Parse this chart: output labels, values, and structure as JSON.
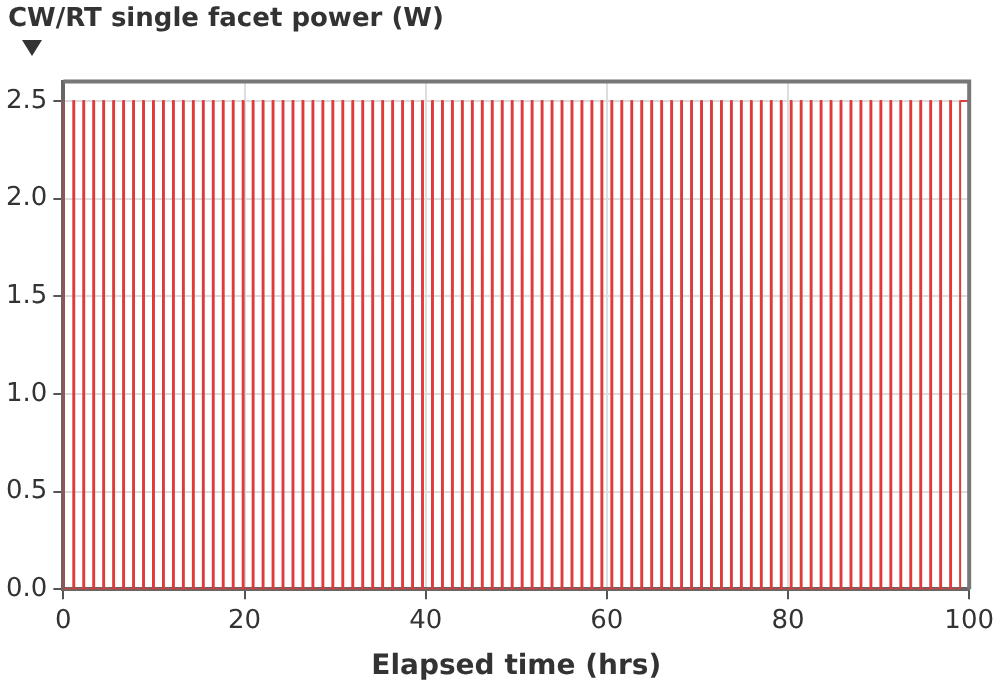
{
  "chart_data": {
    "type": "step",
    "title": "CW/RT single facet power (W)",
    "xlabel": "Elapsed time (hrs)",
    "x": [
      0,
      1.1,
      1.2,
      2.2,
      2.3,
      3.3,
      3.4,
      4.4,
      4.5,
      5.5,
      5.6,
      6.6,
      6.7,
      7.7,
      7.8,
      8.8,
      8.9,
      9.9,
      10,
      11,
      11.1,
      12.1,
      12.2,
      13.2,
      13.3,
      14.3,
      14.4,
      15.4,
      15.5,
      16.5,
      16.6,
      17.6,
      17.7,
      18.7,
      18.8,
      19.8,
      19.9,
      20.9,
      21,
      22,
      22.1,
      23.1,
      23.2,
      24.2,
      24.3,
      25.3,
      25.4,
      26.4,
      26.5,
      27.5,
      27.6,
      28.6,
      28.7,
      29.7,
      29.8,
      30.8,
      30.9,
      31.9,
      32,
      33,
      33.1,
      34.1,
      34.2,
      35.2,
      35.3,
      36.3,
      36.4,
      37.4,
      37.5,
      38.5,
      38.6,
      39.6,
      39.7,
      40.7,
      40.8,
      41.8,
      41.9,
      42.9,
      43,
      44,
      44.1,
      45.1,
      45.2,
      46.2,
      46.3,
      47.3,
      47.4,
      48.4,
      48.5,
      49.5,
      49.6,
      50.6,
      50.7,
      51.7,
      51.8,
      52.8,
      52.9,
      53.9,
      54,
      55,
      55.1,
      56.1,
      56.2,
      57.2,
      57.3,
      58.3,
      58.4,
      59.4,
      59.5,
      60.5,
      60.6,
      61.6,
      61.7,
      62.7,
      62.8,
      63.8,
      63.9,
      64.9,
      65,
      66,
      66.1,
      67.1,
      67.2,
      68.2,
      68.3,
      69.3,
      69.4,
      70.4,
      70.5,
      71.5,
      71.6,
      72.6,
      72.7,
      73.7,
      73.8,
      74.8,
      74.9,
      75.9,
      76,
      77,
      77.1,
      78.1,
      78.2,
      79.2,
      79.3,
      80.3,
      80.4,
      81.4,
      81.5,
      82.5,
      82.6,
      83.6,
      83.7,
      84.7,
      84.8,
      85.8,
      85.9,
      86.9,
      87,
      88,
      88.1,
      89.1,
      89.2,
      90.2,
      90.3,
      91.3,
      91.4,
      92.4,
      92.5,
      93.5,
      93.6,
      94.6,
      94.7,
      95.7,
      95.8,
      96.8,
      96.9,
      97.9,
      98,
      99,
      99.1,
      100
    ],
    "series": [
      {
        "color": "#e03a3a",
        "values": [
          2.5,
          0,
          2.5,
          0,
          2.5,
          0,
          2.5,
          0,
          2.5,
          0,
          2.5,
          0,
          2.5,
          0,
          2.5,
          0,
          2.5,
          0,
          2.5,
          0,
          2.5,
          0,
          2.5,
          0,
          2.5,
          0,
          2.5,
          0,
          2.5,
          0,
          2.5,
          0,
          2.5,
          0,
          2.5,
          0,
          2.5,
          0,
          2.5,
          0,
          2.5,
          0,
          2.5,
          0,
          2.5,
          0,
          2.5,
          0,
          2.5,
          0,
          2.5,
          0,
          2.5,
          0,
          2.5,
          0,
          2.5,
          0,
          2.5,
          0,
          2.5,
          0,
          2.5,
          0,
          2.5,
          0,
          2.5,
          0,
          2.5,
          0,
          2.5,
          0,
          2.5,
          0,
          2.5,
          0,
          2.5,
          0,
          2.5,
          0,
          2.5,
          0,
          2.5,
          0,
          2.5,
          0,
          2.5,
          0,
          2.5,
          0,
          2.5,
          0,
          2.5,
          0,
          2.5,
          0,
          2.5,
          0,
          2.5,
          0,
          2.5,
          0,
          2.5,
          0,
          2.5,
          0,
          2.5,
          0,
          2.5,
          0,
          2.5,
          0,
          2.5,
          0,
          2.5,
          0,
          2.5,
          0,
          2.5,
          0,
          2.5,
          0,
          2.5,
          0,
          2.5,
          0,
          2.5,
          0,
          2.5,
          0,
          2.5,
          0,
          2.5,
          0,
          2.5,
          0,
          2.5,
          0,
          2.5,
          0,
          2.5,
          0,
          2.5,
          0,
          2.5,
          0,
          2.5,
          0,
          2.5,
          0,
          2.5,
          0,
          2.5,
          0,
          2.5,
          0,
          2.5,
          0,
          2.5,
          0,
          2.5,
          0,
          2.5,
          0,
          2.5,
          0,
          2.5,
          0,
          2.5,
          0,
          2.5,
          0,
          2.5,
          0,
          2.5,
          0,
          2.5,
          0,
          2.5,
          0,
          2.5,
          2.5
        ]
      }
    ],
    "xlim": [
      0,
      100
    ],
    "xticks": [
      0,
      20,
      40,
      60,
      80,
      100
    ],
    "ylim": [
      0,
      2.6
    ],
    "yticks": [
      {
        "value": 0,
        "label": "0.0"
      },
      {
        "value": 0.5,
        "label": "0.5"
      },
      {
        "value": 1,
        "label": "1.0"
      },
      {
        "value": 1.5,
        "label": "1.5"
      },
      {
        "value": 2,
        "label": "2.0"
      },
      {
        "value": 2.5,
        "label": "2.5"
      }
    ],
    "grid": true,
    "marker": "none",
    "line_style": "solid"
  }
}
